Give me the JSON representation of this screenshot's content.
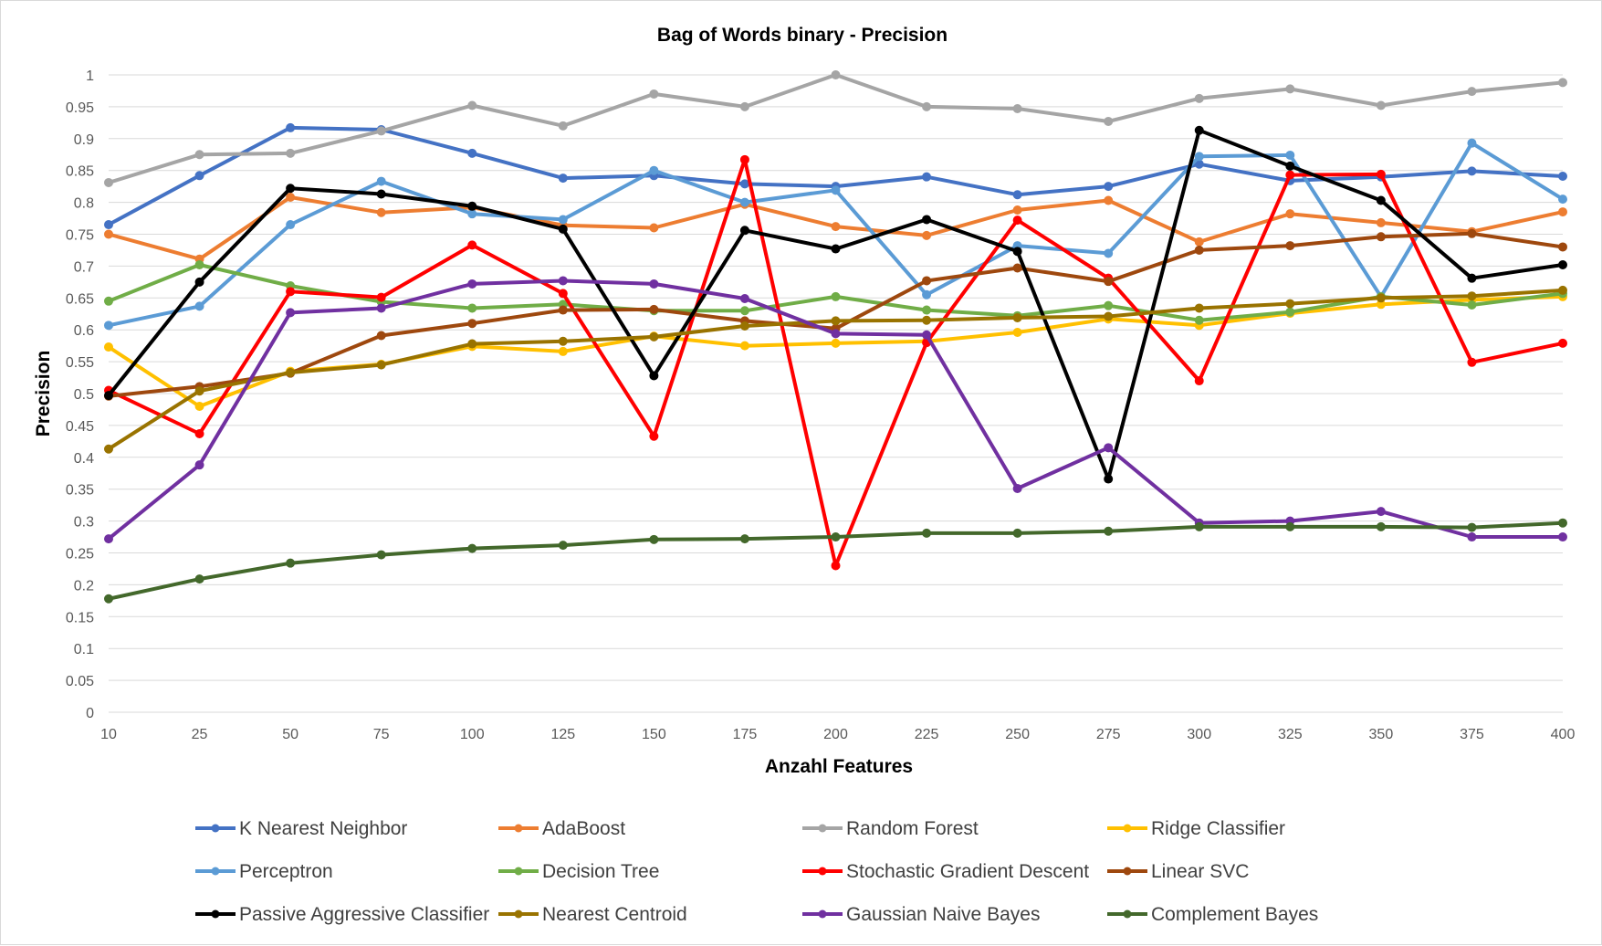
{
  "chart_data": {
    "type": "line",
    "title": "Bag of Words binary - Precision",
    "xlabel": "Anzahl Features",
    "ylabel": "Precision",
    "x": [
      10,
      25,
      50,
      75,
      100,
      125,
      150,
      175,
      200,
      225,
      250,
      275,
      300,
      325,
      350,
      375,
      400
    ],
    "x_tick_labels": [
      "10",
      "25",
      "50",
      "75",
      "100",
      "125",
      "150",
      "175",
      "200",
      "225",
      "250",
      "275",
      "300",
      "325",
      "350",
      "375",
      "400"
    ],
    "ylim": [
      0,
      1
    ],
    "y_tick_labels": [
      "0",
      "0.05",
      "0.1",
      "0.15",
      "0.2",
      "0.25",
      "0.3",
      "0.35",
      "0.4",
      "0.45",
      "0.5",
      "0.55",
      "0.6",
      "0.65",
      "0.7",
      "0.75",
      "0.8",
      "0.85",
      "0.9",
      "0.95",
      "1"
    ],
    "grid": true,
    "legend_position": "bottom",
    "series": [
      {
        "name": "K Nearest Neighbor",
        "color": "#4472C4",
        "values": [
          0.765,
          0.842,
          0.917,
          0.914,
          0.877,
          0.838,
          0.842,
          0.829,
          0.825,
          0.84,
          0.812,
          0.825,
          0.86,
          0.834,
          0.84,
          0.849,
          0.841
        ]
      },
      {
        "name": "AdaBoost",
        "color": "#ED7D31",
        "values": [
          0.75,
          0.711,
          0.808,
          0.784,
          0.792,
          0.764,
          0.76,
          0.797,
          0.762,
          0.748,
          0.788,
          0.803,
          0.738,
          0.782,
          0.768,
          0.754,
          0.785
        ]
      },
      {
        "name": "Random Forest",
        "color": "#A5A5A5",
        "values": [
          0.831,
          0.875,
          0.877,
          0.912,
          0.952,
          0.92,
          0.97,
          0.95,
          1.0,
          0.95,
          0.947,
          0.927,
          0.963,
          0.978,
          0.952,
          0.974,
          0.988
        ]
      },
      {
        "name": "Ridge Classifier",
        "color": "#FFC000",
        "values": [
          0.573,
          0.48,
          0.535,
          0.546,
          0.574,
          0.566,
          0.59,
          0.575,
          0.579,
          0.582,
          0.596,
          0.617,
          0.607,
          0.626,
          0.64,
          0.647,
          0.652
        ]
      },
      {
        "name": "Perceptron",
        "color": "#5B9BD5",
        "values": [
          0.607,
          0.637,
          0.765,
          0.833,
          0.782,
          0.773,
          0.85,
          0.8,
          0.819,
          0.655,
          0.732,
          0.72,
          0.872,
          0.874,
          0.652,
          0.893,
          0.805
        ]
      },
      {
        "name": "Decision Tree",
        "color": "#70AD47",
        "values": [
          0.645,
          0.702,
          0.669,
          0.644,
          0.634,
          0.64,
          0.63,
          0.63,
          0.652,
          0.631,
          0.622,
          0.638,
          0.615,
          0.628,
          0.652,
          0.639,
          0.657
        ]
      },
      {
        "name": "Stochastic Gradient Descent",
        "color": "#FF0000",
        "values": [
          0.505,
          0.437,
          0.66,
          0.651,
          0.733,
          0.657,
          0.433,
          0.867,
          0.23,
          0.58,
          0.772,
          0.681,
          0.52,
          0.843,
          0.844,
          0.549,
          0.579
        ]
      },
      {
        "name": "Linear SVC",
        "color": "#9E480E",
        "values": [
          0.496,
          0.511,
          0.532,
          0.591,
          0.61,
          0.631,
          0.632,
          0.614,
          0.602,
          0.677,
          0.697,
          0.676,
          0.725,
          0.732,
          0.746,
          0.751,
          0.73
        ]
      },
      {
        "name": "Passive Aggressive Classifier",
        "color": "#000000",
        "values": [
          0.497,
          0.675,
          0.822,
          0.813,
          0.794,
          0.758,
          0.528,
          0.756,
          0.727,
          0.773,
          0.723,
          0.366,
          0.913,
          0.857,
          0.803,
          0.681,
          0.702
        ]
      },
      {
        "name": "Nearest Centroid",
        "color": "#997300",
        "values": [
          0.413,
          0.504,
          0.533,
          0.545,
          0.578,
          0.582,
          0.589,
          0.606,
          0.614,
          0.615,
          0.619,
          0.621,
          0.634,
          0.641,
          0.65,
          0.653,
          0.662
        ]
      },
      {
        "name": "Gaussian Naive Bayes",
        "color": "#7030A0",
        "values": [
          0.272,
          0.388,
          0.627,
          0.634,
          0.672,
          0.677,
          0.672,
          0.649,
          0.594,
          0.592,
          0.351,
          0.415,
          0.297,
          0.3,
          0.315,
          0.275,
          0.275
        ]
      },
      {
        "name": "Complement Bayes",
        "color": "#43682B",
        "values": [
          0.178,
          0.209,
          0.234,
          0.247,
          0.257,
          0.262,
          0.271,
          0.272,
          0.275,
          0.281,
          0.281,
          0.284,
          0.291,
          0.291,
          0.291,
          0.29,
          0.297
        ]
      }
    ]
  }
}
